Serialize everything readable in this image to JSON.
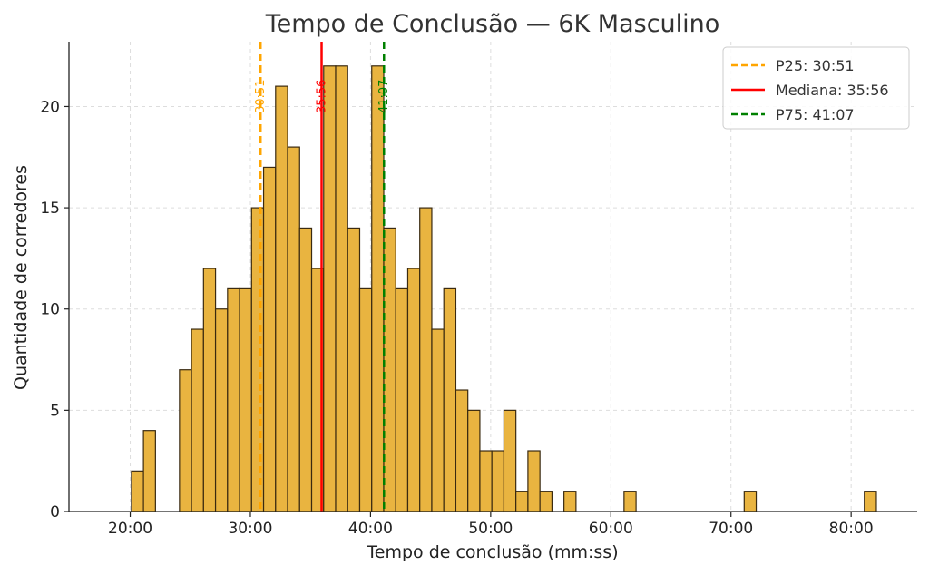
{
  "chart_data": {
    "type": "bar",
    "title": "Tempo de Conclusão — 6K Masculino",
    "xlabel": "Tempo de conclusão (mm:ss)",
    "ylabel": "Quantidade de corredores",
    "xlim": [
      14.9,
      85.5
    ],
    "ylim": [
      0,
      23.2
    ],
    "bin_width": 1.0,
    "grid": true,
    "x_ticks": [
      {
        "value": 20,
        "label": "20:00"
      },
      {
        "value": 30,
        "label": "30:00"
      },
      {
        "value": 40,
        "label": "40:00"
      },
      {
        "value": 50,
        "label": "50:00"
      },
      {
        "value": 60,
        "label": "60:00"
      },
      {
        "value": 70,
        "label": "70:00"
      },
      {
        "value": 80,
        "label": "80:00"
      }
    ],
    "y_ticks": [
      {
        "value": 0,
        "label": "0"
      },
      {
        "value": 5,
        "label": "5"
      },
      {
        "value": 10,
        "label": "10"
      },
      {
        "value": 15,
        "label": "15"
      },
      {
        "value": 20,
        "label": "20"
      }
    ],
    "bins": [
      {
        "start": 20.1,
        "count": 2
      },
      {
        "start": 21.1,
        "count": 4
      },
      {
        "start": 24.1,
        "count": 7
      },
      {
        "start": 25.1,
        "count": 9
      },
      {
        "start": 26.1,
        "count": 12
      },
      {
        "start": 27.1,
        "count": 10
      },
      {
        "start": 28.1,
        "count": 11
      },
      {
        "start": 29.1,
        "count": 11
      },
      {
        "start": 30.1,
        "count": 15
      },
      {
        "start": 31.1,
        "count": 17
      },
      {
        "start": 32.1,
        "count": 21
      },
      {
        "start": 33.1,
        "count": 18
      },
      {
        "start": 34.1,
        "count": 14
      },
      {
        "start": 35.1,
        "count": 12
      },
      {
        "start": 36.1,
        "count": 22
      },
      {
        "start": 37.1,
        "count": 22
      },
      {
        "start": 38.1,
        "count": 14
      },
      {
        "start": 39.1,
        "count": 11
      },
      {
        "start": 40.1,
        "count": 22
      },
      {
        "start": 41.1,
        "count": 14
      },
      {
        "start": 42.1,
        "count": 11
      },
      {
        "start": 43.1,
        "count": 12
      },
      {
        "start": 44.1,
        "count": 15
      },
      {
        "start": 45.1,
        "count": 9
      },
      {
        "start": 46.1,
        "count": 11
      },
      {
        "start": 47.1,
        "count": 6
      },
      {
        "start": 48.1,
        "count": 5
      },
      {
        "start": 49.1,
        "count": 3
      },
      {
        "start": 50.1,
        "count": 3
      },
      {
        "start": 51.1,
        "count": 5
      },
      {
        "start": 52.1,
        "count": 1
      },
      {
        "start": 53.1,
        "count": 3
      },
      {
        "start": 54.1,
        "count": 1
      },
      {
        "start": 56.1,
        "count": 1
      },
      {
        "start": 61.1,
        "count": 1
      },
      {
        "start": 71.1,
        "count": 1
      },
      {
        "start": 81.1,
        "count": 1
      }
    ],
    "reference_lines": [
      {
        "name": "P25: 30:51",
        "value": 30.85,
        "label": "30:51",
        "color": "#ffa500",
        "style": "dashed"
      },
      {
        "name": "Mediana: 35:56",
        "value": 35.93,
        "label": "35:56",
        "color": "#ff0000",
        "style": "solid"
      },
      {
        "name": "P75: 41:07",
        "value": 41.12,
        "label": "41:07",
        "color": "#008000",
        "style": "dashed"
      }
    ],
    "legend_position": "top-right",
    "bar_color": "#e9b440"
  }
}
